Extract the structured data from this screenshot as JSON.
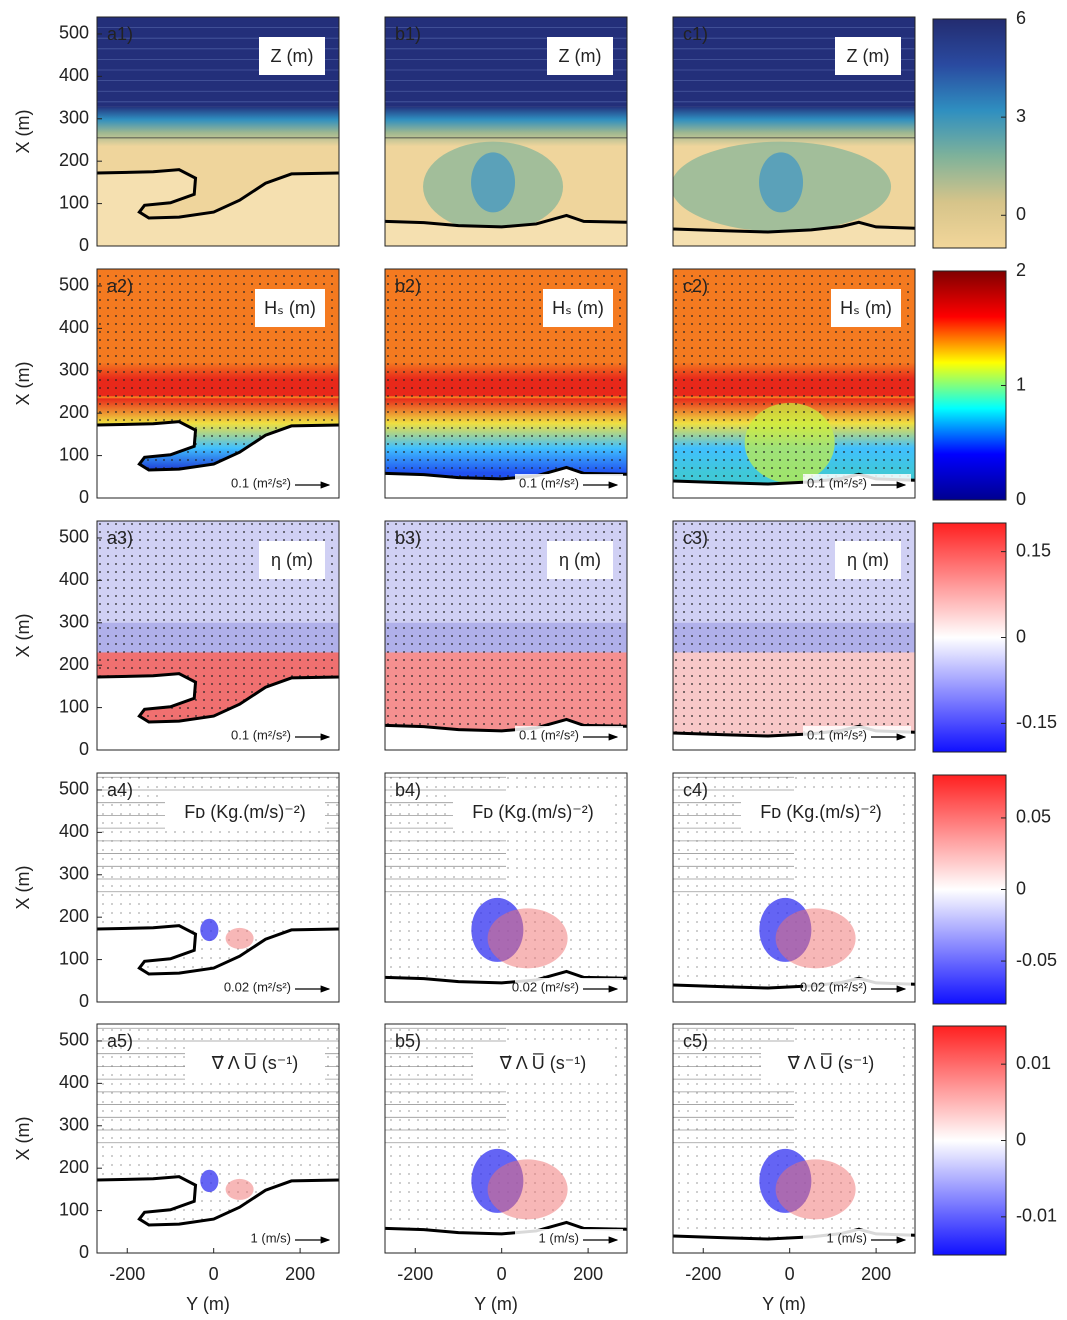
{
  "chart_data": [
    {
      "type": "heatmap",
      "panel_label": "a1)",
      "title": "Z (m)",
      "ylabel": "X (m)",
      "xlim": [
        -270,
        290
      ],
      "ylim": [
        0,
        540
      ],
      "yticks": [
        0,
        100,
        200,
        300,
        400,
        500
      ]
    },
    {
      "type": "heatmap",
      "panel_label": "b1)",
      "title": "Z (m)",
      "xlim": [
        -270,
        290
      ],
      "ylim": [
        0,
        540
      ]
    },
    {
      "type": "heatmap",
      "panel_label": "c1)",
      "title": "Z (m)",
      "xlim": [
        -270,
        290
      ],
      "ylim": [
        0,
        540
      ]
    },
    {
      "type": "heatmap",
      "panel_label": "a2)",
      "title": "Hₛ (m)",
      "ylabel": "X (m)",
      "arrow_label": "0.1 (m²/s²)",
      "xlim": [
        -270,
        290
      ],
      "ylim": [
        0,
        540
      ],
      "yticks": [
        0,
        100,
        200,
        300,
        400,
        500
      ]
    },
    {
      "type": "heatmap",
      "panel_label": "b2)",
      "title": "Hₛ (m)",
      "arrow_label": "0.1 (m²/s²)",
      "xlim": [
        -270,
        290
      ],
      "ylim": [
        0,
        540
      ]
    },
    {
      "type": "heatmap",
      "panel_label": "c2)",
      "title": "Hₛ (m)",
      "arrow_label": "0.1 (m²/s²)",
      "xlim": [
        -270,
        290
      ],
      "ylim": [
        0,
        540
      ]
    },
    {
      "type": "heatmap",
      "panel_label": "a3)",
      "title": "η (m)",
      "ylabel": "X (m)",
      "arrow_label": "0.1 (m²/s²)",
      "xlim": [
        -270,
        290
      ],
      "ylim": [
        0,
        540
      ],
      "yticks": [
        0,
        100,
        200,
        300,
        400,
        500
      ]
    },
    {
      "type": "heatmap",
      "panel_label": "b3)",
      "title": "η (m)",
      "arrow_label": "0.1 (m²/s²)",
      "xlim": [
        -270,
        290
      ],
      "ylim": [
        0,
        540
      ]
    },
    {
      "type": "heatmap",
      "panel_label": "c3)",
      "title": "η (m)",
      "arrow_label": "0.1 (m²/s²)",
      "xlim": [
        -270,
        290
      ],
      "ylim": [
        0,
        540
      ]
    },
    {
      "type": "heatmap",
      "panel_label": "a4)",
      "title": "Fᴅ (Kg.(m/s)⁻²)",
      "ylabel": "X (m)",
      "arrow_label": "0.02 (m²/s²)",
      "xlim": [
        -270,
        290
      ],
      "ylim": [
        0,
        540
      ],
      "yticks": [
        0,
        100,
        200,
        300,
        400,
        500
      ]
    },
    {
      "type": "heatmap",
      "panel_label": "b4)",
      "title": "Fᴅ (Kg.(m/s)⁻²)",
      "arrow_label": "0.02 (m²/s²)",
      "xlim": [
        -270,
        290
      ],
      "ylim": [
        0,
        540
      ]
    },
    {
      "type": "heatmap",
      "panel_label": "c4)",
      "title": "Fᴅ (Kg.(m/s)⁻²)",
      "arrow_label": "0.02 (m²/s²)",
      "xlim": [
        -270,
        290
      ],
      "ylim": [
        0,
        540
      ]
    },
    {
      "type": "heatmap",
      "panel_label": "a5)",
      "title": "∇⃗ Λ U̅ (s⁻¹)",
      "ylabel": "X (m)",
      "xlabel": "Y (m)",
      "arrow_label": "1 (m/s)",
      "xlim": [
        -270,
        290
      ],
      "ylim": [
        0,
        540
      ],
      "yticks": [
        0,
        100,
        200,
        300,
        400,
        500
      ],
      "xticks": [
        -200,
        0,
        200
      ]
    },
    {
      "type": "heatmap",
      "panel_label": "b5)",
      "title": "∇⃗ Λ U̅ (s⁻¹)",
      "xlabel": "Y (m)",
      "arrow_label": "1 (m/s)",
      "xlim": [
        -270,
        290
      ],
      "ylim": [
        0,
        540
      ],
      "xticks": [
        -200,
        0,
        200
      ]
    },
    {
      "type": "heatmap",
      "panel_label": "c5)",
      "title": "∇⃗ Λ U̅ (s⁻¹)",
      "xlabel": "Y (m)",
      "arrow_label": "1 (m/s)",
      "xlim": [
        -270,
        290
      ],
      "ylim": [
        0,
        540
      ],
      "xticks": [
        -200,
        0,
        200
      ]
    },
    {
      "type": "colorbar",
      "clim": [
        -1,
        6
      ],
      "ticks": [
        0,
        3,
        6
      ],
      "colors": [
        "#f2d69a",
        "#d6c48a",
        "#7fb29a",
        "#2f8fc0",
        "#2a4aa0",
        "#232c70"
      ]
    },
    {
      "type": "colorbar",
      "clim": [
        0,
        2
      ],
      "ticks": [
        0,
        1,
        2
      ],
      "colors": [
        "#00008f",
        "#0000ff",
        "#00ffff",
        "#ffff00",
        "#ff0000",
        "#800000"
      ]
    },
    {
      "type": "colorbar",
      "clim": [
        -0.2,
        0.2
      ],
      "ticks": [
        -0.15,
        0,
        0.15
      ],
      "colors": [
        "#1010ff",
        "#ffffff",
        "#ff2020"
      ]
    },
    {
      "type": "colorbar",
      "clim": [
        -0.08,
        0.08
      ],
      "ticks": [
        -0.05,
        0,
        0.05
      ],
      "colors": [
        "#1010ff",
        "#ffffff",
        "#ff2020"
      ]
    },
    {
      "type": "colorbar",
      "clim": [
        -0.015,
        0.015
      ],
      "ticks": [
        -0.01,
        0,
        0.01
      ],
      "colors": [
        "#1010ff",
        "#ffffff",
        "#ff2020"
      ]
    }
  ]
}
